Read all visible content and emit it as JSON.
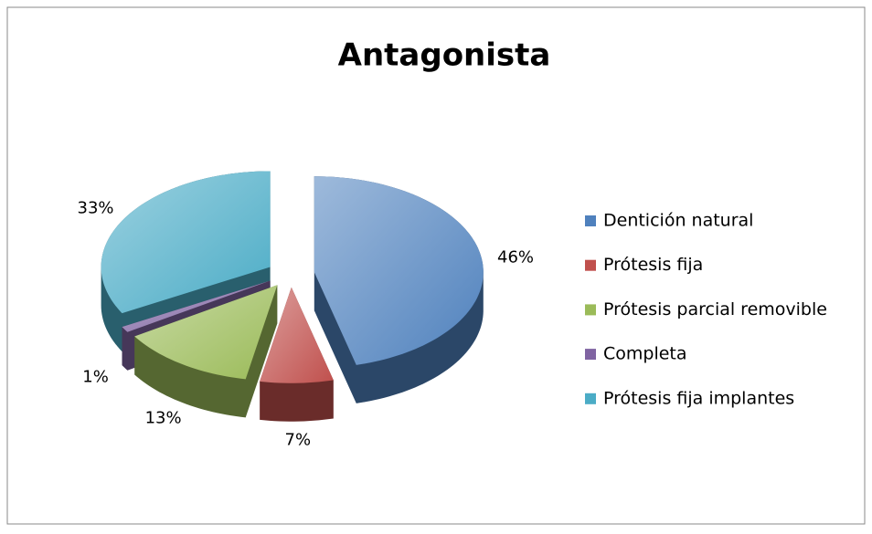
{
  "chart_data": {
    "type": "pie",
    "title": "Antagonista",
    "categories": [
      "Dentición natural",
      "Prótesis fija",
      "Prótesis parcial removible",
      "Completa",
      "Prótesis fija implantes"
    ],
    "values": [
      46,
      7,
      13,
      1,
      33
    ],
    "value_labels": [
      "46%",
      "7%",
      "13%",
      "1%",
      "33%"
    ],
    "colors": [
      "#4f81bd",
      "#c0504d",
      "#9bbb59",
      "#8064a2",
      "#4bacc6"
    ],
    "legend": "right"
  }
}
